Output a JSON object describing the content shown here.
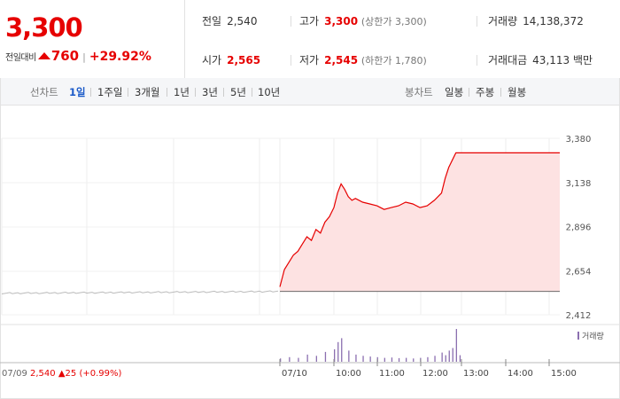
{
  "quote": {
    "price": "3,300",
    "change_label": "전일대비",
    "change_amount": "760",
    "change_pct": "+29.92%"
  },
  "summary": {
    "prev_close": {
      "label": "전일",
      "value": "2,540"
    },
    "high": {
      "label": "고가",
      "value": "3,300",
      "limit_label": "(상한가 3,300)"
    },
    "volume": {
      "label": "거래량",
      "value": "14,138,372"
    },
    "open": {
      "label": "시가",
      "value": "2,565"
    },
    "low": {
      "label": "저가",
      "value": "2,545",
      "limit_label": "(하한가 1,780)"
    },
    "amount": {
      "label": "거래대금",
      "value": "43,113 백만"
    }
  },
  "toolbar": {
    "line_chart_label": "선차트",
    "periods": [
      "1일",
      "1주일",
      "3개월",
      "1년",
      "3년",
      "5년",
      "10년"
    ],
    "active_period": "1일",
    "candle_label": "봉차트",
    "candles": [
      "일봉",
      "주봉",
      "월봉"
    ]
  },
  "chart": {
    "volume_legend": "거래량",
    "prev_date": "07/09",
    "prev_close": "2,540",
    "prev_change": "25",
    "prev_change_pct": "(+0.99%)",
    "colors": {
      "up": "#e60000",
      "prev_line": "#bbbbbb",
      "fill": "#fde2e2",
      "volume": "#8b6fb0"
    }
  },
  "chart_data": {
    "type": "line",
    "y_ticks": [
      "3,380",
      "3,138",
      "2,896",
      "2,654",
      "2,412"
    ],
    "ylim": [
      2412,
      3380
    ],
    "x_ticks": [
      "07/10",
      "10:00",
      "11:00",
      "12:00",
      "13:00",
      "14:00",
      "15:00"
    ],
    "baseline": 2540,
    "prev_day": {
      "date": "07/09",
      "start": 2530,
      "end": 2540,
      "level": 2535
    },
    "today": {
      "time": [
        "09:00",
        "09:05",
        "09:10",
        "09:15",
        "09:20",
        "09:25",
        "09:30",
        "09:35",
        "09:40",
        "09:45",
        "09:50",
        "09:55",
        "10:00",
        "10:05",
        "10:10",
        "10:15",
        "10:20",
        "10:25",
        "10:30",
        "10:40",
        "10:50",
        "11:00",
        "11:10",
        "11:20",
        "11:30",
        "11:40",
        "11:50",
        "12:00",
        "12:10",
        "12:20",
        "12:30",
        "12:35",
        "12:40",
        "12:45",
        "12:50",
        "12:55",
        "13:00",
        "15:30"
      ],
      "price": [
        2565,
        2660,
        2700,
        2740,
        2760,
        2800,
        2840,
        2820,
        2880,
        2860,
        2920,
        2950,
        3000,
        3080,
        3130,
        3100,
        3060,
        3040,
        3050,
        3030,
        3020,
        3010,
        2990,
        3000,
        3010,
        3030,
        3020,
        3000,
        3010,
        3040,
        3080,
        3160,
        3220,
        3260,
        3300,
        3300,
        3300,
        3300
      ]
    },
    "volume": {
      "time": [
        "09:00",
        "09:10",
        "09:20",
        "09:30",
        "09:40",
        "09:50",
        "10:00",
        "10:05",
        "10:10",
        "10:20",
        "10:30",
        "10:40",
        "10:50",
        "11:00",
        "11:10",
        "11:20",
        "11:30",
        "11:40",
        "11:50",
        "12:00",
        "12:10",
        "12:20",
        "12:30",
        "12:35",
        "12:40",
        "12:45",
        "12:50",
        "12:55"
      ],
      "value": [
        10,
        14,
        12,
        22,
        18,
        30,
        38,
        60,
        72,
        34,
        22,
        18,
        16,
        14,
        12,
        13,
        11,
        12,
        10,
        12,
        14,
        18,
        28,
        20,
        34,
        42,
        100,
        20
      ]
    }
  }
}
